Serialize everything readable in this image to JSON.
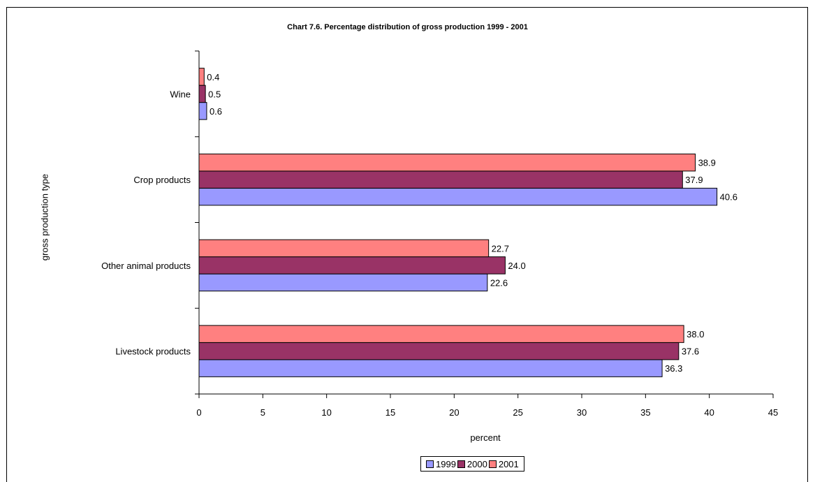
{
  "chart_data": {
    "type": "bar",
    "orientation": "horizontal",
    "title": "Chart 7.6.  Percentage distribution of gross production 1999 - 2001",
    "xlabel": "percent",
    "ylabel": "gross production type",
    "xlim": [
      0,
      45
    ],
    "xticks": [
      0,
      5,
      10,
      15,
      20,
      25,
      30,
      35,
      40,
      45
    ],
    "categories": [
      "Wine",
      "Crop products",
      "Other animal products",
      "Livestock products"
    ],
    "series": [
      {
        "name": "1999",
        "color": "#9999FF",
        "values": [
          0.6,
          40.6,
          22.6,
          36.3
        ],
        "labels": [
          "0.6",
          "40.6",
          "22.6",
          "36.3"
        ]
      },
      {
        "name": "2000",
        "color": "#993366",
        "values": [
          0.5,
          37.9,
          24.0,
          37.6
        ],
        "labels": [
          "0.5",
          "37.9",
          "24.0",
          "37.6"
        ]
      },
      {
        "name": "2001",
        "color": "#FF8080",
        "values": [
          0.4,
          38.9,
          22.7,
          38.0
        ],
        "labels": [
          "0.4",
          "38.9",
          "22.7",
          "38.0"
        ]
      }
    ],
    "grid": false,
    "legend_position": "bottom"
  }
}
